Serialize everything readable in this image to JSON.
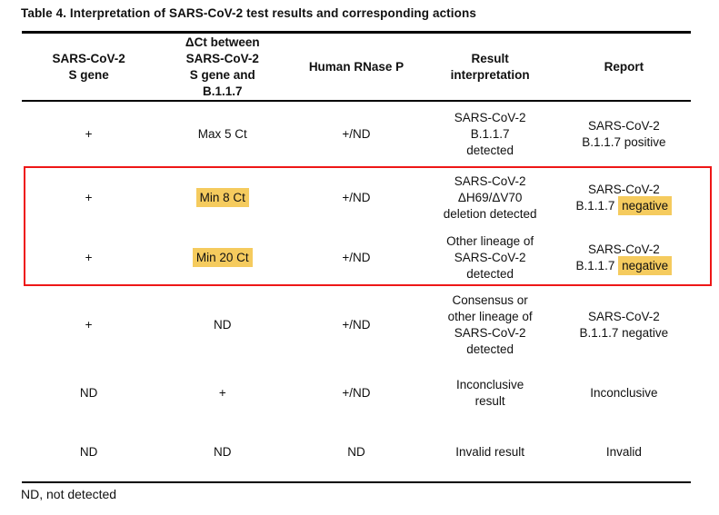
{
  "title": "Table 4. Interpretation of SARS-CoV-2 test results and corresponding actions",
  "footnote": "ND, not detected",
  "colors": {
    "highlight_yellow": "#f5cb5e",
    "annotation_red": "#ee1717"
  },
  "table": {
    "headers": [
      "SARS-CoV-2\nS gene",
      "ΔCt between\nSARS-CoV-2\nS gene and\nB.1.1.7",
      "Human RNase P",
      "Result\ninterpretation",
      "Report"
    ],
    "rows": [
      [
        [
          {
            "t": "+"
          }
        ],
        [
          {
            "t": "Max 5 Ct"
          }
        ],
        [
          {
            "t": "+/ND"
          }
        ],
        [
          {
            "t": "SARS-CoV-2\nB.1.1.7\ndetected"
          }
        ],
        [
          {
            "t": "SARS-CoV-2\nB.1.1.7 positive"
          }
        ]
      ],
      [
        [
          {
            "t": "+"
          }
        ],
        [
          {
            "t": "Min 8 Ct",
            "h": true
          }
        ],
        [
          {
            "t": "+/ND"
          }
        ],
        [
          {
            "t": "SARS-CoV-2\nΔH69/ΔV70\ndeletion detected"
          }
        ],
        [
          {
            "t": "SARS-CoV-2\nB.1.1.7 "
          },
          {
            "t": "negative",
            "h": true
          }
        ]
      ],
      [
        [
          {
            "t": "+"
          }
        ],
        [
          {
            "t": "Min 20 Ct",
            "h": true
          }
        ],
        [
          {
            "t": "+/ND"
          }
        ],
        [
          {
            "t": "Other lineage of\nSARS-CoV-2\ndetected"
          }
        ],
        [
          {
            "t": "SARS-CoV-2\nB.1.1.7 "
          },
          {
            "t": "negative",
            "h": true
          }
        ]
      ],
      [
        [
          {
            "t": "+"
          }
        ],
        [
          {
            "t": "ND"
          }
        ],
        [
          {
            "t": "+/ND"
          }
        ],
        [
          {
            "t": "Consensus or\nother lineage of\nSARS-CoV-2\ndetected"
          }
        ],
        [
          {
            "t": "SARS-CoV-2\nB.1.1.7 negative"
          }
        ]
      ],
      [
        [
          {
            "t": "ND"
          }
        ],
        [
          {
            "t": "+"
          }
        ],
        [
          {
            "t": "+/ND"
          }
        ],
        [
          {
            "t": "Inconclusive\nresult"
          }
        ],
        [
          {
            "t": "Inconclusive"
          }
        ]
      ],
      [
        [
          {
            "t": "ND"
          }
        ],
        [
          {
            "t": "ND"
          }
        ],
        [
          {
            "t": "ND"
          }
        ],
        [
          {
            "t": "Invalid result"
          }
        ],
        [
          {
            "t": "Invalid"
          }
        ]
      ]
    ]
  },
  "annotation": {
    "red_box_rows": "rows 2-3 (Min 8 Ct and Min 20 Ct)"
  }
}
